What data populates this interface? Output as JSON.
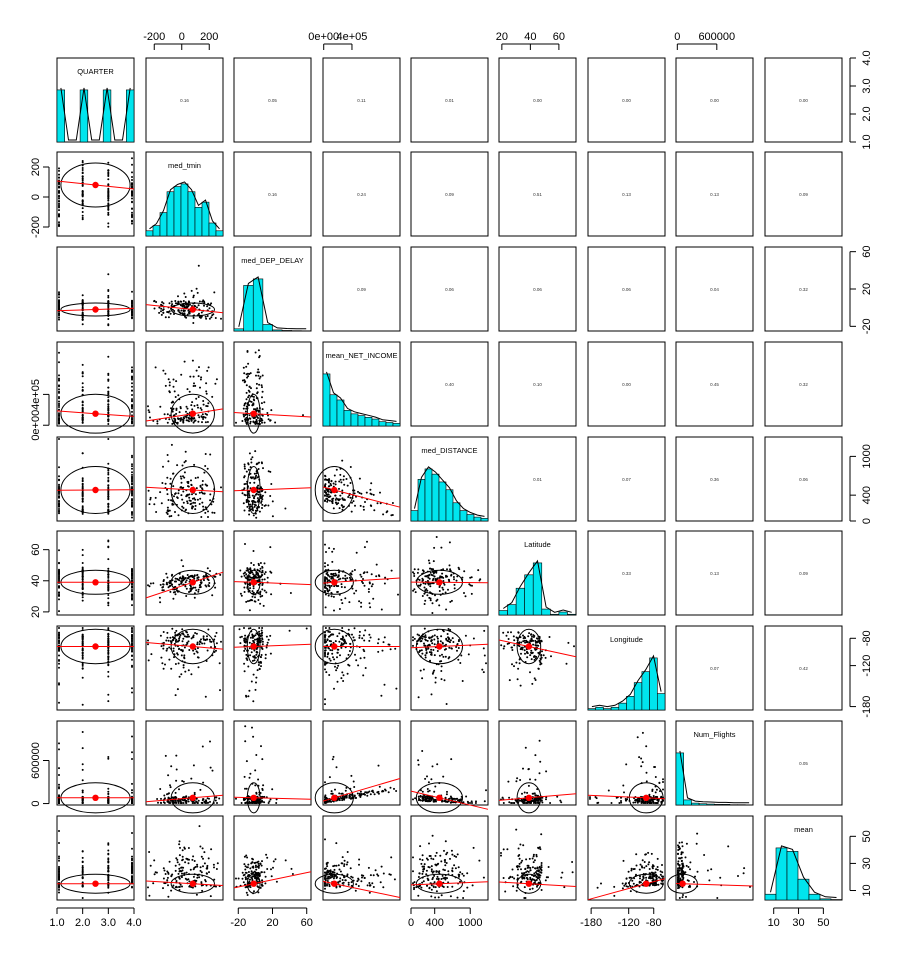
{
  "chart_data": {
    "type": "scatter",
    "subtype": "scatterplot-matrix",
    "variables": [
      {
        "name": "QUARTER",
        "range": [
          1,
          4
        ],
        "mean": 2.5,
        "sd": 1.1,
        "discrete": [
          1,
          2,
          3,
          4
        ],
        "ticks": [
          1.0,
          2.0,
          3.0,
          4.0
        ],
        "tick_labels": [
          "1.0",
          "2.0",
          "3.0",
          "4.0"
        ],
        "hist": [
          0.25,
          0,
          0,
          0.25,
          0,
          0,
          0.25,
          0,
          0,
          0.25
        ]
      },
      {
        "name": "med_tmin",
        "range": [
          -260,
          300
        ],
        "mean": 80,
        "sd": 105,
        "ticks": [
          -200,
          0,
          200
        ],
        "tick_labels": [
          "-200",
          "0",
          "200"
        ],
        "hist": [
          0.02,
          0.04,
          0.09,
          0.17,
          0.19,
          0.2,
          0.17,
          0.11,
          0.13,
          0.05,
          0.02
        ]
      },
      {
        "name": "med_DEP_DELAY",
        "range": [
          -25,
          65
        ],
        "mean": -2,
        "sd": 5,
        "ticks": [
          -20,
          20,
          60
        ],
        "tick_labels": [
          "-20",
          "20",
          "60"
        ],
        "hist": [
          0.02,
          0.42,
          0.48,
          0.06,
          0.01,
          0.005,
          0.003,
          0.002
        ]
      },
      {
        "name": "mean_NET_INCOME",
        "range": [
          -10000,
          1080000
        ],
        "mean": 150000,
        "sd": 180000,
        "ticks": [
          0,
          400000
        ],
        "tick_labels": [
          "0e+00",
          "4e+05"
        ],
        "hist": [
          0.3,
          0.18,
          0.15,
          0.09,
          0.07,
          0.06,
          0.05,
          0.04,
          0.025,
          0.02,
          0.015
        ]
      },
      {
        "name": "med_DISTANCE",
        "range": [
          0,
          1300
        ],
        "mean": 480,
        "sd": 260,
        "ticks": [
          0,
          400,
          1000
        ],
        "tick_labels": [
          "0",
          "400",
          "1000"
        ],
        "hist": [
          0.04,
          0.16,
          0.2,
          0.18,
          0.15,
          0.12,
          0.07,
          0.04,
          0.025,
          0.015,
          0.01
        ]
      },
      {
        "name": "Latitude",
        "range": [
          18,
          72
        ],
        "mean": 39,
        "sd": 5.5,
        "ticks": [
          20,
          40,
          60
        ],
        "tick_labels": [
          "20",
          "40",
          "60"
        ],
        "hist": [
          0.03,
          0.07,
          0.18,
          0.27,
          0.35,
          0.04,
          0.005,
          0.02,
          0.005
        ]
      },
      {
        "name": "Longitude",
        "range": [
          -185,
          -62
        ],
        "mean": -92,
        "sd": 18,
        "ticks": [
          -180,
          -120,
          -80
        ],
        "tick_labels": [
          "-180",
          "-120",
          "-80"
        ],
        "hist": [
          0.01,
          0.02,
          0.01,
          0.02,
          0.05,
          0.1,
          0.2,
          0.28,
          0.38,
          0.12
        ]
      },
      {
        "name": "Num_Flights",
        "range": [
          -20000,
          1150000
        ],
        "mean": 80000,
        "sd": 150000,
        "ticks": [
          0,
          600000
        ],
        "tick_labels": [
          "0",
          "600000"
        ],
        "hist": [
          0.82,
          0.08,
          0.03,
          0.02,
          0.015,
          0.01,
          0.01,
          0.005,
          0.005,
          0.003
        ]
      },
      {
        "name": "mean",
        "range": [
          3,
          65
        ],
        "mean": 15,
        "sd": 5,
        "ticks": [
          10,
          30,
          50
        ],
        "tick_labels": [
          "10",
          "30",
          "50"
        ],
        "hist": [
          0.05,
          0.45,
          0.42,
          0.18,
          0.05,
          0.01,
          0.004
        ]
      }
    ],
    "correlations": [
      [
        null,
        "0.16",
        "0.05",
        "0.11",
        "0.01",
        "0.00",
        "0.00",
        "0.00",
        "0.00"
      ],
      [
        null,
        null,
        "0.16",
        "0.24",
        "0.09",
        "0.51",
        "0.13",
        "0.13",
        "0.09"
      ],
      [
        null,
        null,
        null,
        "0.09",
        "0.06",
        "0.06",
        "0.06",
        "0.04",
        "0.32"
      ],
      [
        null,
        null,
        null,
        null,
        "0.40",
        "0.10",
        "0.00",
        "0.45",
        "0.32"
      ],
      [
        null,
        null,
        null,
        null,
        null,
        "0.01",
        "0.07",
        "0.36",
        "0.06"
      ],
      [
        null,
        null,
        null,
        null,
        null,
        null,
        "0.33",
        "0.13",
        "0.09"
      ],
      [
        null,
        null,
        null,
        null,
        null,
        null,
        null,
        "0.07",
        "0.42"
      ],
      [
        null,
        null,
        null,
        null,
        null,
        null,
        null,
        null,
        "0.05"
      ],
      [
        null,
        null,
        null,
        null,
        null,
        null,
        null,
        null,
        null
      ]
    ],
    "top_axis_vars": [
      1,
      3,
      5,
      7
    ],
    "bottom_axis_vars": [
      0,
      2,
      4,
      6,
      8
    ],
    "right_axis_vars": [
      0,
      2,
      4,
      6,
      8
    ],
    "left_axis_vars": [
      1,
      3,
      5,
      7
    ],
    "colors": {
      "hist_fill": "#00e5ee",
      "points": "#000000",
      "smooth": "#ff0000",
      "centroid": "#ff0000"
    }
  }
}
